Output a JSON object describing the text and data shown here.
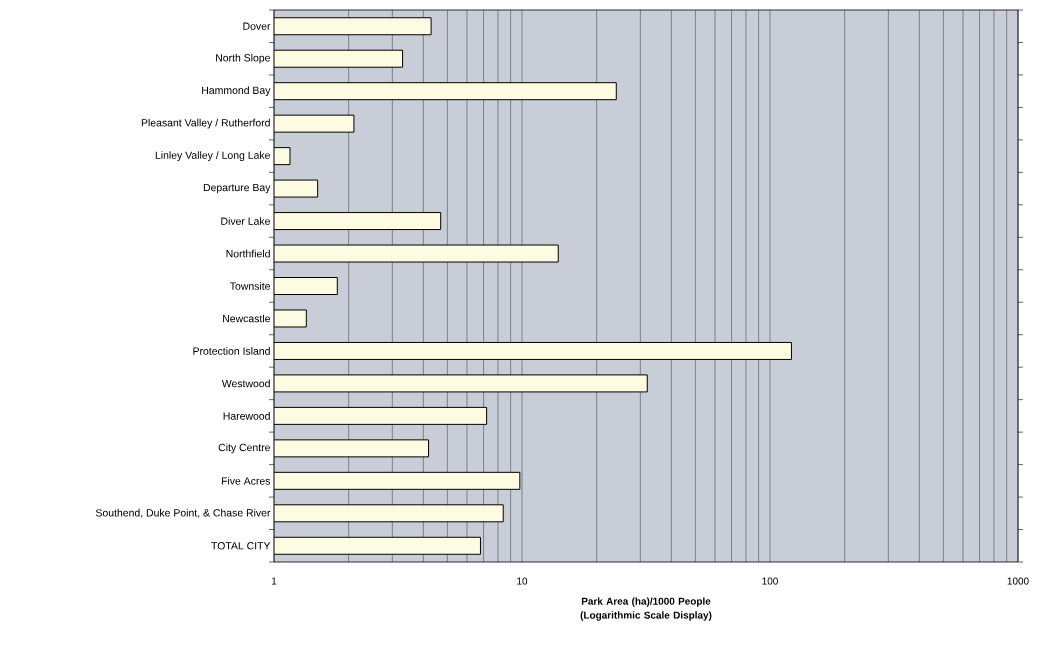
{
  "chart_data": {
    "type": "bar",
    "orientation": "horizontal",
    "log": "x",
    "xlabel": "Park Area (ha)/1000 People (Logarithmic Scale Display)",
    "categories": [
      "Dover",
      "North Slope",
      "Hammond Bay",
      "Pleasant Valley / Rutherford",
      "Linley Valley / Long Lake",
      "Departure Bay",
      "Diver Lake",
      "Northfield",
      "Townsite",
      "Newcastle",
      "Protection Island",
      "Westwood",
      "Harewood",
      "City Centre",
      "Five Acres",
      "Southend, Duke Point, & Chase River",
      "TOTAL CITY"
    ],
    "values": [
      4.3,
      3.3,
      24,
      2.1,
      1.16,
      1.5,
      4.7,
      14,
      1.8,
      1.35,
      122,
      32,
      7.2,
      4.2,
      9.8,
      8.4,
      6.8
    ],
    "color": "#fdfce2",
    "xlim": [
      1,
      1000
    ],
    "xticks": [
      1,
      10,
      100,
      1000
    ],
    "grid": "x"
  }
}
